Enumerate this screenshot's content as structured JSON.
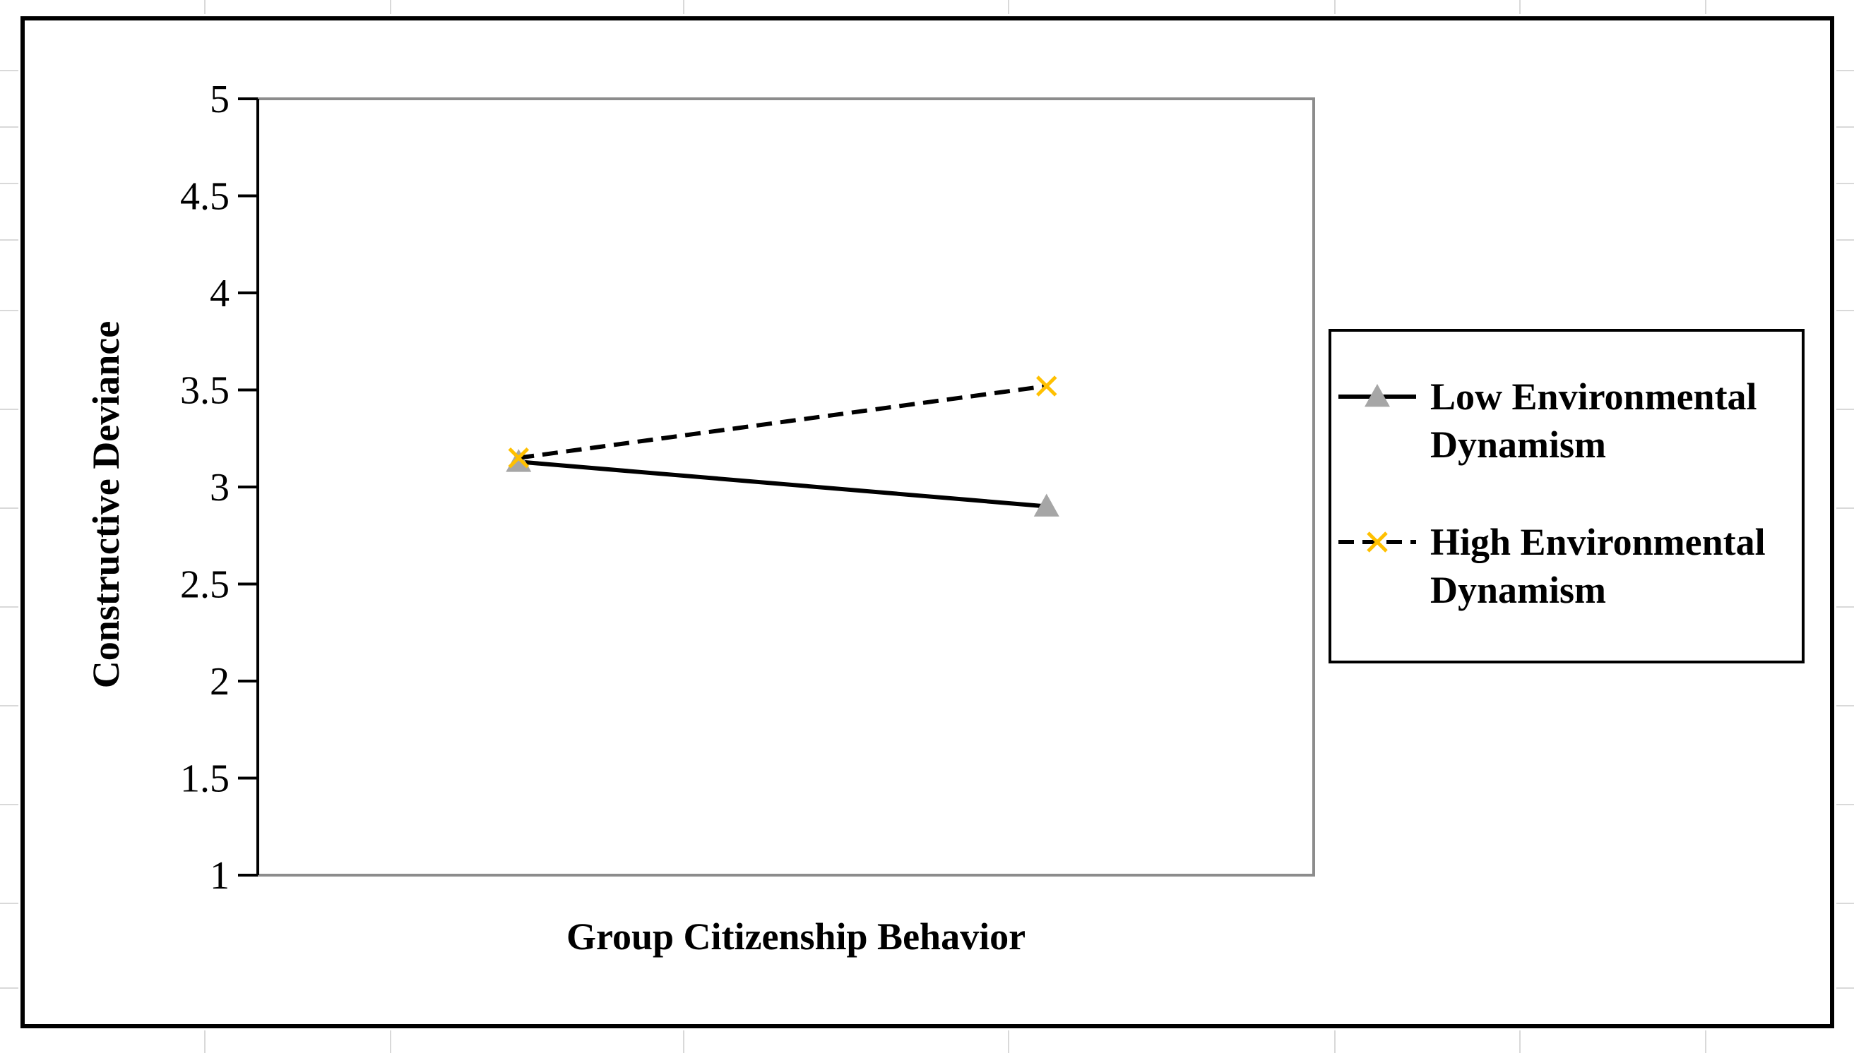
{
  "chart_data": {
    "type": "line",
    "title": "",
    "xlabel": "Group Citizenship Behavior",
    "ylabel": "Constructive Deviance",
    "ylim": [
      1,
      5
    ],
    "yticks": [
      "1",
      "1.5",
      "2",
      "2.5",
      "3",
      "3.5",
      "4",
      "4.5",
      "5"
    ],
    "x": [
      1,
      2
    ],
    "grid": false,
    "legend_position": "right",
    "series": [
      {
        "name": "Low Environmental Dynamism",
        "name_lines": [
          "Low Environmental",
          "Dynamism"
        ],
        "values": [
          3.13,
          2.9
        ],
        "marker": "triangle",
        "line_style": "solid",
        "color": "#000000",
        "marker_color": "#a6a6a6"
      },
      {
        "name": "High Environmental Dynamism",
        "name_lines": [
          "High Environmental",
          "Dynamism"
        ],
        "values": [
          3.15,
          3.52
        ],
        "marker": "x",
        "line_style": "dashed",
        "color": "#000000",
        "marker_color": "#ffc000"
      }
    ]
  }
}
